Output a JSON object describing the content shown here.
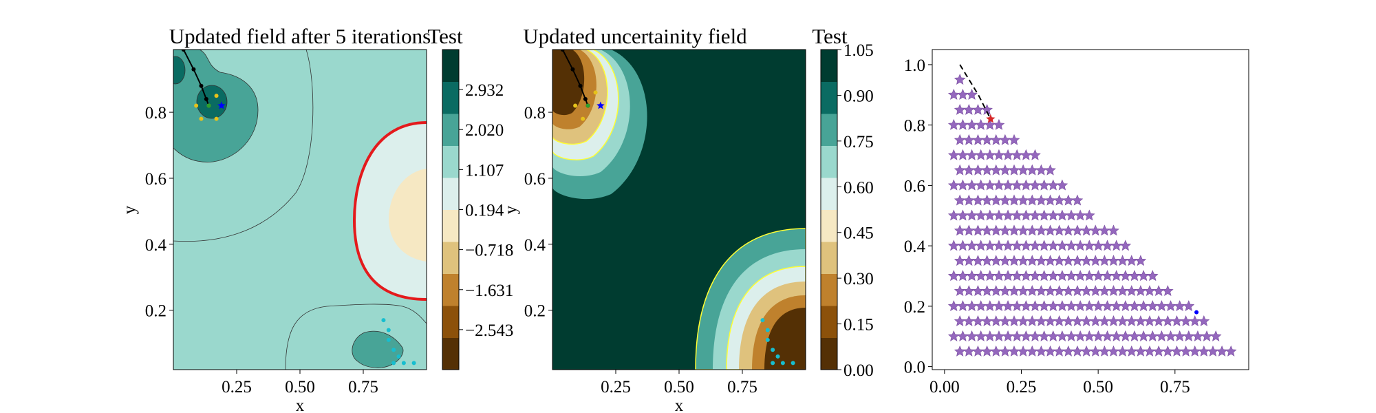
{
  "colors": {
    "levels": [
      "#543005",
      "#8c510a",
      "#bf812d",
      "#dfc27d",
      "#f6e8c3",
      "#dcefec",
      "#9ad8cd",
      "#48a497",
      "#0a6b62",
      "#003c30"
    ],
    "red_contour": "#e41a1c",
    "yellow_contour": "#ffff33",
    "cyan": "#17becf",
    "gold": "#e6c21a",
    "green": "#2ca02c",
    "blue": "#0000ff",
    "purple": "#9467bd",
    "crimson": "#d62728"
  },
  "chart_data": [
    {
      "type": "heatmap",
      "title": "Updated field after 5 iterations",
      "xlabel": "x",
      "ylabel": "y",
      "xlim": [
        0.0,
        1.0
      ],
      "ylim": [
        0.02,
        0.99
      ],
      "xticks": [
        "0.25",
        "0.50",
        "0.75"
      ],
      "yticks": [
        "0.2",
        "0.4",
        "0.6",
        "0.8"
      ],
      "colorbar": {
        "label": "Test",
        "range": [
          -3.456,
          3.845
        ],
        "ticks": [
          "2.932",
          "2.020",
          "1.107",
          "0.194",
          "−0.718",
          "−1.631",
          "−2.543"
        ]
      },
      "annotations": {
        "red_contour": "value 0 boundary",
        "trajectory": [
          [
            0.04,
            0.99
          ],
          [
            0.08,
            0.93
          ],
          [
            0.11,
            0.88
          ],
          [
            0.13,
            0.84
          ],
          [
            0.14,
            0.82
          ]
        ],
        "blue_star": [
          0.19,
          0.82
        ],
        "gold_points": [
          [
            0.09,
            0.82
          ],
          [
            0.11,
            0.78
          ],
          [
            0.17,
            0.78
          ],
          [
            0.17,
            0.85
          ],
          [
            0.14,
            0.82
          ]
        ],
        "cyan_points": [
          [
            0.83,
            0.17
          ],
          [
            0.85,
            0.14
          ],
          [
            0.85,
            0.11
          ],
          [
            0.87,
            0.08
          ],
          [
            0.89,
            0.06
          ],
          [
            0.91,
            0.04
          ],
          [
            0.95,
            0.04
          ],
          [
            0.87,
            0.04
          ]
        ]
      }
    },
    {
      "type": "heatmap",
      "title": "Updated uncertainity field",
      "xlabel": "x",
      "ylabel": "y",
      "xlim": [
        0.0,
        1.0
      ],
      "ylim": [
        0.02,
        0.99
      ],
      "xticks": [
        "0.25",
        "0.50",
        "0.75"
      ],
      "yticks": [
        "0.2",
        "0.4",
        "0.6",
        "0.8"
      ],
      "colorbar": {
        "label": "Test",
        "range": [
          0.0,
          1.05
        ],
        "ticks": [
          "1.05",
          "0.90",
          "0.75",
          "0.60",
          "0.45",
          "0.30",
          "0.15",
          "0.00"
        ]
      },
      "annotations": {
        "trajectory": [
          [
            0.04,
            0.99
          ],
          [
            0.08,
            0.93
          ],
          [
            0.11,
            0.88
          ],
          [
            0.13,
            0.84
          ],
          [
            0.14,
            0.82
          ]
        ],
        "blue_star": [
          0.19,
          0.82
        ],
        "cyan_points": [
          [
            0.83,
            0.17
          ],
          [
            0.85,
            0.14
          ],
          [
            0.85,
            0.11
          ],
          [
            0.87,
            0.08
          ],
          [
            0.89,
            0.06
          ],
          [
            0.91,
            0.04
          ],
          [
            0.95,
            0.04
          ],
          [
            0.87,
            0.04
          ]
        ]
      }
    },
    {
      "type": "scatter",
      "title": "",
      "xlabel": "",
      "ylabel": "",
      "xlim": [
        -0.04,
        0.99
      ],
      "ylim": [
        -0.01,
        1.05
      ],
      "xticks": [
        "0.00",
        "0.25",
        "0.50",
        "0.75"
      ],
      "yticks": [
        "0.0",
        "0.2",
        "0.4",
        "0.6",
        "0.8",
        "1.0"
      ],
      "series": [
        {
          "marker": "star",
          "grid": "triangle",
          "x_start": 0.03,
          "y_start": 0.05,
          "step": 0.05,
          "rows": 20
        }
      ],
      "annotations": {
        "dashed_path": [
          [
            0.05,
            1.0
          ],
          [
            0.08,
            0.95
          ],
          [
            0.11,
            0.9
          ],
          [
            0.13,
            0.86
          ],
          [
            0.15,
            0.82
          ]
        ],
        "red_star": [
          0.15,
          0.82
        ],
        "blue_point": [
          0.82,
          0.18
        ]
      }
    }
  ]
}
